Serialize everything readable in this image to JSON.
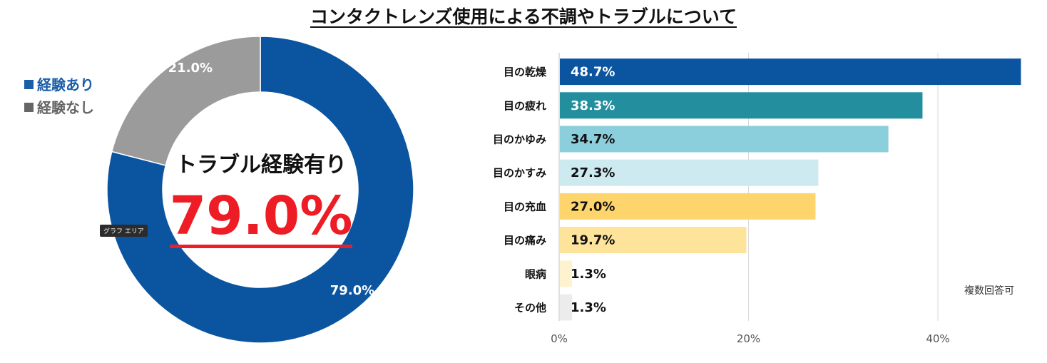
{
  "title": "コンタクトレンズ使用による不調やトラブルについて",
  "legend": {
    "items": [
      {
        "marker": "■",
        "label": "経験あり",
        "color": "#1a5ea8"
      },
      {
        "marker": "■",
        "label": "経験なし",
        "color": "#666666"
      }
    ]
  },
  "donut_center": {
    "title": "トラブル経験有り",
    "value": "79.0%"
  },
  "tooltip": "グラフ エリア",
  "note": "複数回答可",
  "chart_data": [
    {
      "type": "pie",
      "style": "donut",
      "title": "",
      "categories": [
        "経験あり",
        "経験なし"
      ],
      "values": [
        79.0,
        21.0
      ],
      "labels": [
        "79.0%",
        "21.0%"
      ],
      "colors": [
        "#0b55a0",
        "#9b9b9b"
      ],
      "legend": "top-left"
    },
    {
      "type": "bar",
      "orientation": "horizontal",
      "title": "",
      "categories": [
        "目の乾燥",
        "目の疲れ",
        "目のかゆみ",
        "目のかすみ",
        "目の充血",
        "目の痛み",
        "眼病",
        "その他"
      ],
      "values": [
        48.7,
        38.3,
        34.7,
        27.3,
        27.0,
        19.7,
        1.3,
        1.3
      ],
      "labels": [
        "48.7%",
        "38.3%",
        "34.7%",
        "27.3%",
        "27.0%",
        "19.7%",
        "1.3%",
        "1.3%"
      ],
      "colors": [
        "#0b55a0",
        "#228e9e",
        "#8ccfdc",
        "#cdeaf0",
        "#fed56c",
        "#fee39a",
        "#fff2cf",
        "#ececec"
      ],
      "label_colors": [
        "#ffffff",
        "#ffffff",
        "#111111",
        "#111111",
        "#111111",
        "#111111",
        "#111111",
        "#111111"
      ],
      "xlim": [
        0,
        49
      ],
      "xticks": [
        "0%",
        "20%",
        "40%"
      ],
      "xtick_values": [
        0,
        20,
        40
      ],
      "grid": true
    }
  ]
}
